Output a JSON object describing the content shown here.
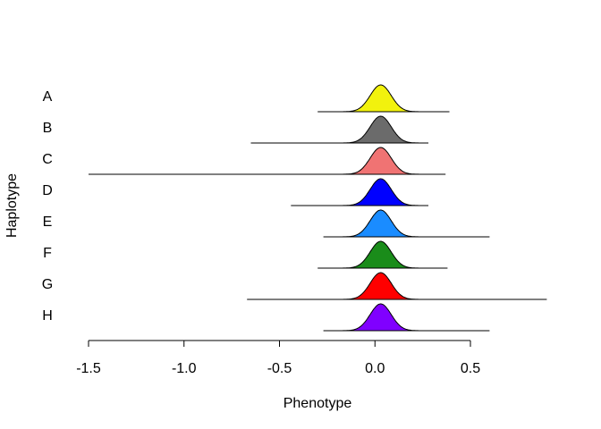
{
  "chart_data": {
    "type": "area",
    "xlabel": "Phenotype",
    "ylabel": "Haplotype",
    "xlim": [
      -1.5,
      0.9
    ],
    "x_ticks": [
      -1.5,
      -1.0,
      -0.5,
      0.0,
      0.5
    ],
    "x_tick_labels": [
      "-1.5",
      "-1.0",
      "-0.5",
      "0.0",
      "0.5"
    ],
    "grid": false,
    "series": [
      {
        "name": "A",
        "color": "#f2f20d",
        "peak": 0.03,
        "min": -0.3,
        "max": 0.39
      },
      {
        "name": "B",
        "color": "#6b6b6b",
        "peak": 0.03,
        "min": -0.65,
        "max": 0.28
      },
      {
        "name": "C",
        "color": "#f07373",
        "peak": 0.03,
        "min": -1.5,
        "max": 0.37
      },
      {
        "name": "D",
        "color": "#0000ff",
        "peak": 0.03,
        "min": -0.44,
        "max": 0.28
      },
      {
        "name": "E",
        "color": "#1a8cff",
        "peak": 0.03,
        "min": -0.27,
        "max": 0.6
      },
      {
        "name": "F",
        "color": "#1a8c1a",
        "peak": 0.03,
        "min": -0.3,
        "max": 0.38
      },
      {
        "name": "G",
        "color": "#ff0000",
        "peak": 0.03,
        "min": -0.67,
        "max": 0.9
      },
      {
        "name": "H",
        "color": "#8000ff",
        "peak": 0.03,
        "min": -0.27,
        "max": 0.6
      }
    ]
  }
}
